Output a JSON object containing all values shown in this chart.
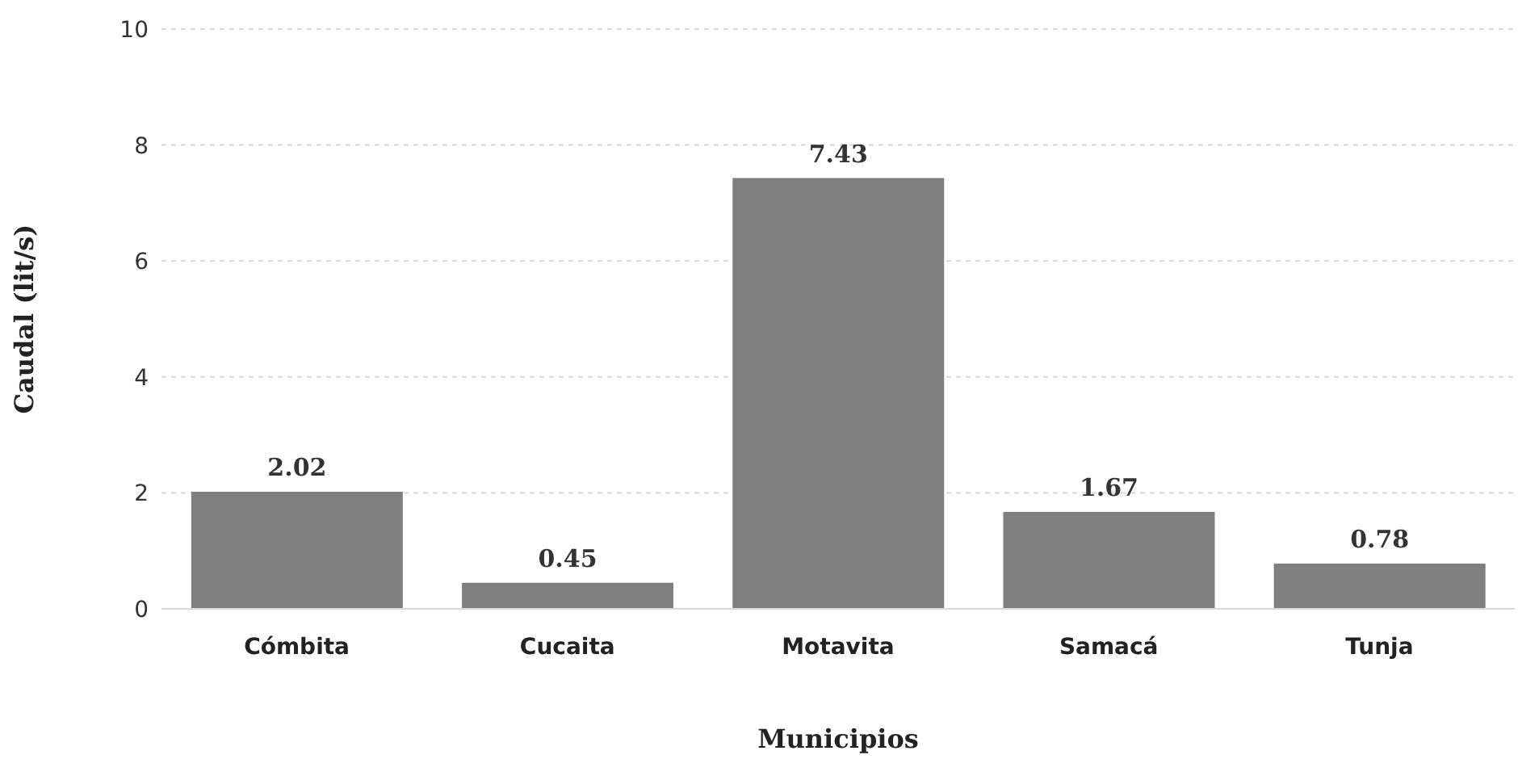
{
  "chart_data": {
    "type": "bar",
    "xlabel": "Municipios",
    "ylabel": "Caudal (lit/s)",
    "categories": [
      "Cómbita",
      "Cucaita",
      "Motavita",
      "Samacá",
      "Tunja"
    ],
    "values": [
      2.02,
      0.45,
      7.43,
      1.67,
      0.78
    ],
    "color": "#7f7f7f",
    "ylim": [
      0,
      10
    ],
    "yticks": [
      0,
      2,
      4,
      6,
      8,
      10
    ],
    "grid": "y",
    "data_labels": true
  }
}
